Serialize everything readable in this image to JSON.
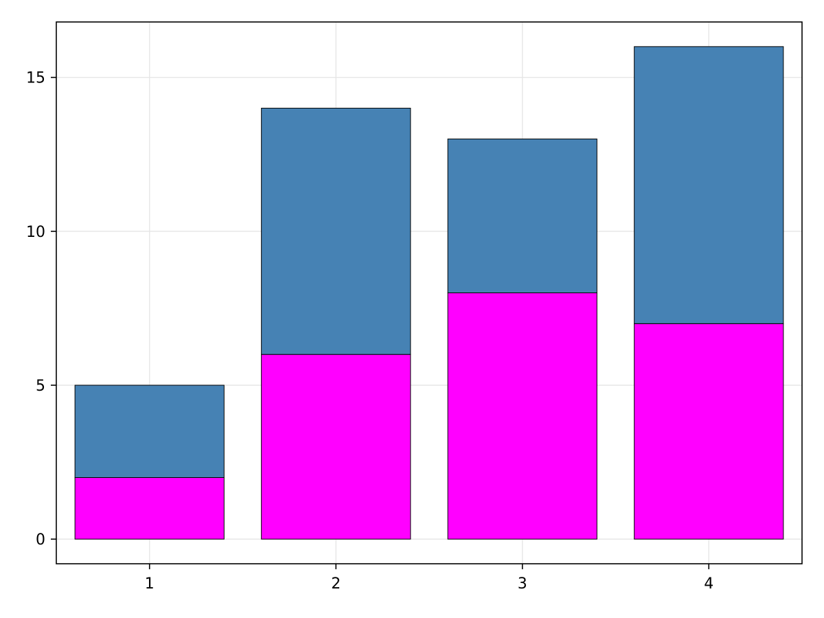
{
  "chart_data": {
    "type": "bar",
    "stacked": true,
    "title": "",
    "xlabel": "",
    "ylabel": "",
    "categories": [
      "1",
      "2",
      "3",
      "4"
    ],
    "series": [
      {
        "color": "#ff00ff",
        "values": [
          2,
          6,
          8,
          7
        ]
      },
      {
        "color": "#4682b4",
        "values": [
          3,
          8,
          5,
          9
        ]
      }
    ],
    "totals": [
      5,
      14,
      13,
      16
    ],
    "xlim": [
      0.5,
      4.5
    ],
    "ylim": [
      -0.8,
      16.8
    ],
    "yticks": [
      0,
      5,
      10,
      15
    ],
    "xticks": [
      1,
      2,
      3,
      4
    ],
    "grid": true,
    "legend": "none",
    "bar_edge_color": "#000000",
    "grid_color": "#e6e6e6"
  }
}
